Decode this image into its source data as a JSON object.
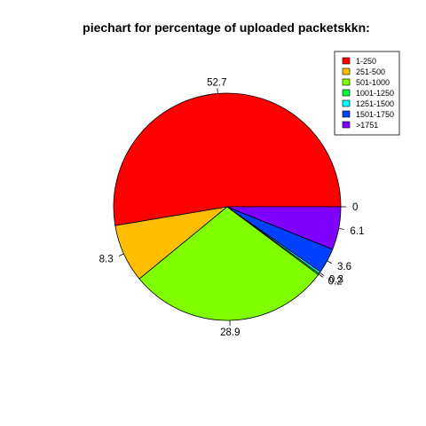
{
  "chart_data": {
    "type": "pie",
    "title": "piechart for percentage of uploaded packetskkn:",
    "slices": [
      {
        "category": "1-250",
        "label": "52.7",
        "value": 52.7,
        "color": "#ff0000"
      },
      {
        "category": "251-500",
        "label": "8.3",
        "value": 8.3,
        "color": "#ffbf00"
      },
      {
        "category": "501-1000",
        "label": "28.9",
        "value": 28.9,
        "color": "#80ff00"
      },
      {
        "category": "1001-1250",
        "label": "0.2",
        "value": 0.2,
        "color": "#00ff40"
      },
      {
        "category": "1251-1500",
        "label": "0.3",
        "value": 0.3,
        "color": "#00ffff"
      },
      {
        "category": "1501-1750",
        "label": "3.6",
        "value": 3.6,
        "color": "#0040ff"
      },
      {
        "category": ">1751",
        "label": "6.1",
        "value": 6.1,
        "color": "#8000ff"
      },
      {
        "category": "",
        "label": "0",
        "value": 0,
        "color": "#ffffff"
      }
    ],
    "legend": {
      "position": "top-right",
      "entries": [
        "1-250",
        "251-500",
        "501-1000",
        "1001-1250",
        "1251-1500",
        "1501-1750",
        ">1751"
      ]
    },
    "start_angle_deg": 0,
    "direction": "counterclockwise"
  }
}
